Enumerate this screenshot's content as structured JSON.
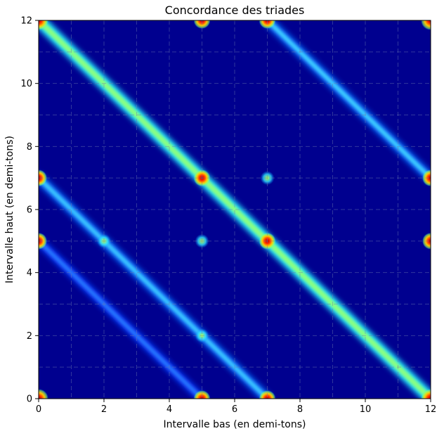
{
  "chart_data": {
    "type": "heatmap",
    "title": "Concordance des triades",
    "xlabel": "Intervalle bas (en demi-tons)",
    "ylabel": "Intervalle haut (en demi-tons)",
    "xlim": [
      0,
      12
    ],
    "ylim": [
      0,
      12
    ],
    "xticks": [
      0,
      2,
      4,
      6,
      8,
      10,
      12
    ],
    "yticks": [
      0,
      2,
      4,
      6,
      8,
      10,
      12
    ],
    "grid": true,
    "colormap": "jet",
    "colors": {
      "background": "#00008f",
      "ridge": "#1e90ff",
      "high": "#ffee00",
      "peak": "#ff2200"
    },
    "ridges": {
      "vertical_x": [
        0,
        5,
        7,
        12
      ],
      "horizontal_y": [
        0,
        5,
        7,
        12
      ],
      "diagonal_x_plus_y": [
        12,
        7,
        19,
        5
      ],
      "strength_order": "x+y=12 strongest, then x+y=7 and x+y=19, x+y=5 weakest"
    },
    "peaks": [
      {
        "x": 0,
        "y": 0
      },
      {
        "x": 0,
        "y": 12
      },
      {
        "x": 12,
        "y": 0
      },
      {
        "x": 12,
        "y": 12
      },
      {
        "x": 0,
        "y": 7
      },
      {
        "x": 0,
        "y": 5
      },
      {
        "x": 7,
        "y": 0
      },
      {
        "x": 5,
        "y": 0
      },
      {
        "x": 7,
        "y": 12
      },
      {
        "x": 12,
        "y": 7
      },
      {
        "x": 5,
        "y": 7
      },
      {
        "x": 7,
        "y": 5
      },
      {
        "x": 5,
        "y": 12
      },
      {
        "x": 12,
        "y": 5
      }
    ]
  }
}
